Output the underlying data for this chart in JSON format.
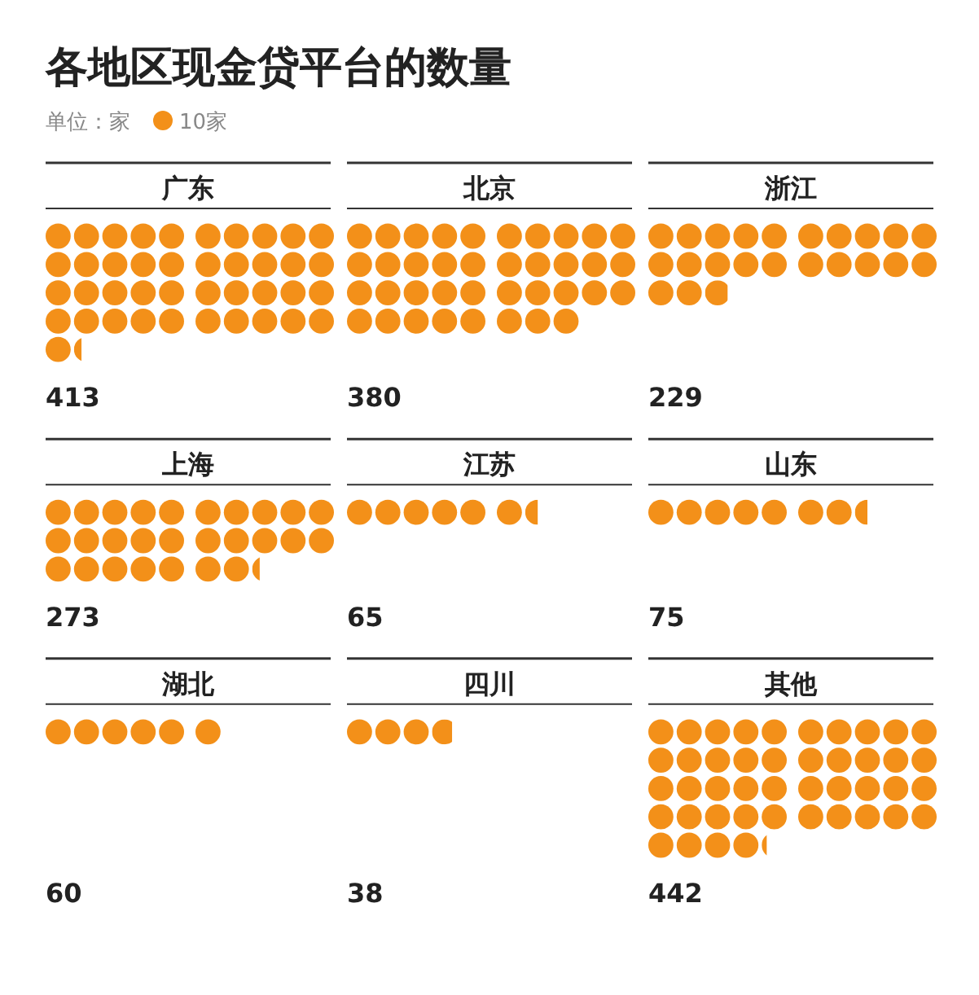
{
  "chart_data": [
    {
      "type": "other",
      "title": "各地区现金贷平台的数量",
      "subtitle": "单位：家",
      "color": "#f39019",
      "values": [
        10
      ],
      "value_labels": [
        "10家"
      ]
    },
    {
      "type": "other",
      "title": "广东",
      "values": [
        413
      ],
      "color": "#f39019",
      "data_labels": true
    },
    {
      "type": "other",
      "title": "北京",
      "values": [
        380
      ],
      "color": "#f39019",
      "data_labels": true
    },
    {
      "type": "other",
      "title": "浙江",
      "values": [
        229
      ],
      "color": "#f39019",
      "data_labels": true
    },
    {
      "type": "other",
      "title": "上海",
      "values": [
        273
      ],
      "color": "#f39019",
      "data_labels": true
    },
    {
      "type": "other",
      "title": "江苏",
      "values": [
        65
      ],
      "color": "#f39019",
      "data_labels": true
    },
    {
      "type": "other",
      "title": "山东",
      "values": [
        75
      ],
      "color": "#f39019",
      "data_labels": true
    },
    {
      "type": "other",
      "title": "湖北",
      "values": [
        60
      ],
      "color": "#f39019",
      "data_labels": true
    },
    {
      "type": "other",
      "title": "四川",
      "values": [
        38
      ],
      "color": "#f39019",
      "data_labels": true
    },
    {
      "type": "other",
      "title": "其他",
      "values": [
        442
      ],
      "color": "#f39019",
      "data_labels": true
    }
  ]
}
